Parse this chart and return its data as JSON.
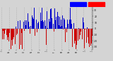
{
  "bar_color_above": "#0000cc",
  "bar_color_below": "#cc0000",
  "background_color": "#d4d4d4",
  "plot_bg_color": "#d4d4d4",
  "grid_color": "#aaaaaa",
  "ylim": [
    -35,
    35
  ],
  "ytick_values": [
    30,
    20,
    10,
    0,
    -10,
    -20,
    -30
  ],
  "ytick_labels": [
    "30",
    "20",
    "10",
    "0",
    "-10",
    "-20",
    "-30"
  ],
  "n_days": 365,
  "seed": 99,
  "legend_blue": "#0000ff",
  "legend_red": "#ff0000"
}
